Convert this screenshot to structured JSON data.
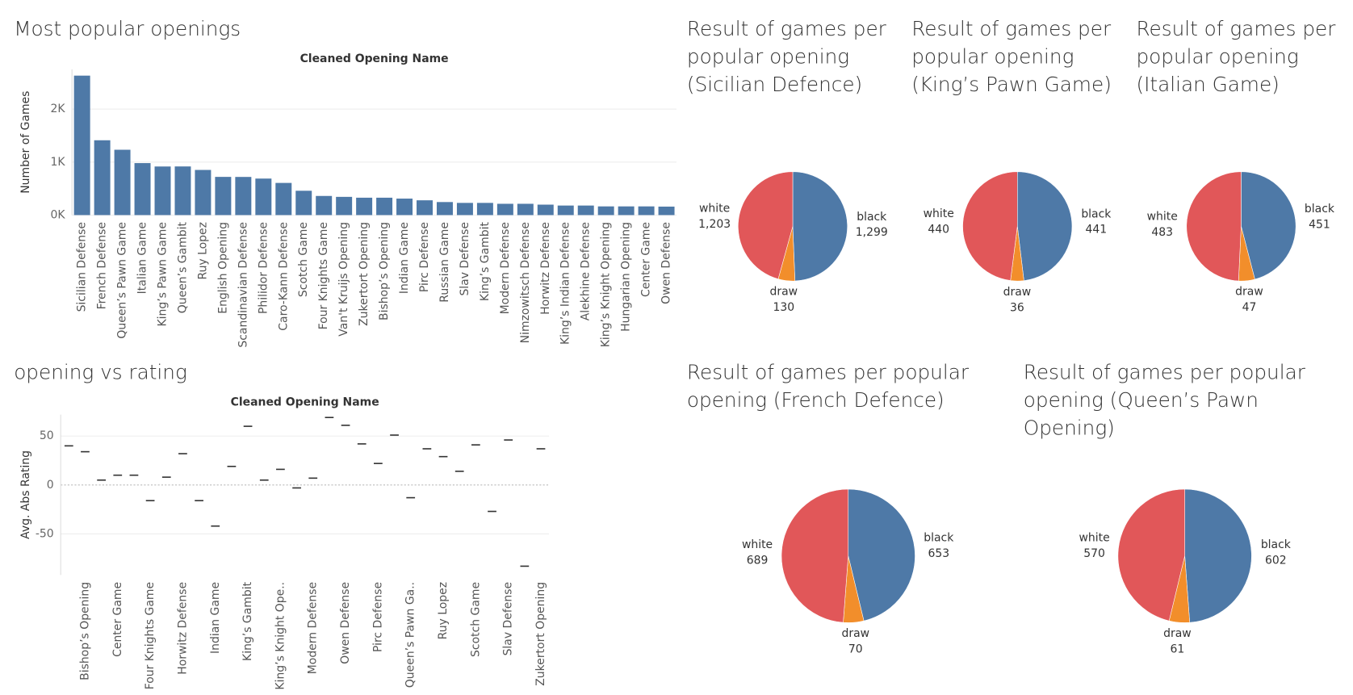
{
  "chart_data": [
    {
      "type": "bar",
      "title": "Most popular openings",
      "x_label": "Cleaned Opening Name",
      "y_label": "Number of Games",
      "categories": [
        "Sicilian Defense",
        "French Defense",
        "Queen’s Pawn Game",
        "Italian Game",
        "King’s Pawn Game",
        "Queen’s Gambit",
        "Ruy Lopez",
        "English Opening",
        "Scandinavian Defense",
        "Philidor Defense",
        "Caro-Kann Defense",
        "Scotch Game",
        "Four Knights Game",
        "Van't Kruijs Opening",
        "Zukertort Opening",
        "Bishop’s Opening",
        "Indian Game",
        "Pirc Defense",
        "Russian Game",
        "Slav Defense",
        "King’s Gambit",
        "Modern Defense",
        "Nimzowitsch Defense",
        "Horwitz Defense",
        "King’s Indian Defense",
        "Alekhine Defense",
        "King’s Knight Opening",
        "Hungarian Opening",
        "Center Game",
        "Owen Defense"
      ],
      "values": [
        2632,
        1412,
        1233,
        981,
        917,
        918,
        852,
        721,
        720,
        689,
        607,
        459,
        361,
        344,
        328,
        328,
        311,
        279,
        246,
        230,
        230,
        213,
        213,
        197,
        180,
        180,
        164,
        164,
        164,
        160
      ],
      "color": "#4e79a7",
      "ylim": [
        0,
        2750
      ],
      "yticks": [
        {
          "value": 0,
          "label": "0K"
        },
        {
          "value": 1000,
          "label": "1K"
        },
        {
          "value": 2000,
          "label": "2K"
        }
      ],
      "grid": true
    },
    {
      "type": "gantt",
      "title": "opening vs rating",
      "x_label": "Cleaned Opening Name",
      "y_label": "Avg. Abs Rating",
      "categories": [
        null,
        "Bishop’s Opening",
        null,
        "Center Game",
        null,
        "Four Knights Game",
        null,
        "Horwitz Defense",
        null,
        "Indian Game",
        null,
        "King’s Gambit",
        null,
        "King’s Knight Ope..",
        null,
        "Modern Defense",
        null,
        "Owen Defense",
        null,
        "Pirc Defense",
        null,
        "Queen’s Pawn Ga..",
        null,
        "Ruy Lopez",
        null,
        "Scotch Game",
        null,
        "Slav Defense",
        null,
        "Zukertort Opening"
      ],
      "values": [
        40,
        34,
        5,
        10,
        10,
        -16,
        8,
        32,
        -16,
        -42,
        19,
        60,
        5,
        16,
        -3,
        7,
        69,
        61,
        42,
        22,
        51,
        -13,
        37,
        29,
        14,
        41,
        -27,
        46,
        -83,
        37
      ],
      "color": "#333333",
      "ylim": [
        -92,
        72
      ],
      "yticks": [
        -50,
        0,
        50
      ],
      "grid": true
    },
    {
      "type": "pie",
      "title": "Result of games per popular opening (Sicilian Defence)",
      "categories": [
        "black",
        "draw",
        "white"
      ],
      "values": [
        1299,
        130,
        1203
      ],
      "value_labels": [
        "1,299",
        "130",
        "1,203"
      ],
      "colors": [
        "#4e79a7",
        "#f28e2b",
        "#e15759"
      ]
    },
    {
      "type": "pie",
      "title": "Result of games per popular opening (King’s Pawn Game)",
      "categories": [
        "black",
        "draw",
        "white"
      ],
      "values": [
        441,
        36,
        440
      ],
      "colors": [
        "#4e79a7",
        "#f28e2b",
        "#e15759"
      ]
    },
    {
      "type": "pie",
      "title": "Result of games per popular opening (Italian Game)",
      "categories": [
        "black",
        "draw",
        "white"
      ],
      "values": [
        451,
        47,
        483
      ],
      "colors": [
        "#4e79a7",
        "#f28e2b",
        "#e15759"
      ]
    },
    {
      "type": "pie",
      "title": "Result of games per popular opening (French Defence)",
      "categories": [
        "black",
        "draw",
        "white"
      ],
      "values": [
        653,
        70,
        689
      ],
      "colors": [
        "#4e79a7",
        "#f28e2b",
        "#e15759"
      ]
    },
    {
      "type": "pie",
      "title": "Result of games per popular opening (Queen’s Pawn Opening)",
      "categories": [
        "black",
        "draw",
        "white"
      ],
      "values": [
        602,
        61,
        570
      ],
      "colors": [
        "#4e79a7",
        "#f28e2b",
        "#e15759"
      ]
    }
  ]
}
